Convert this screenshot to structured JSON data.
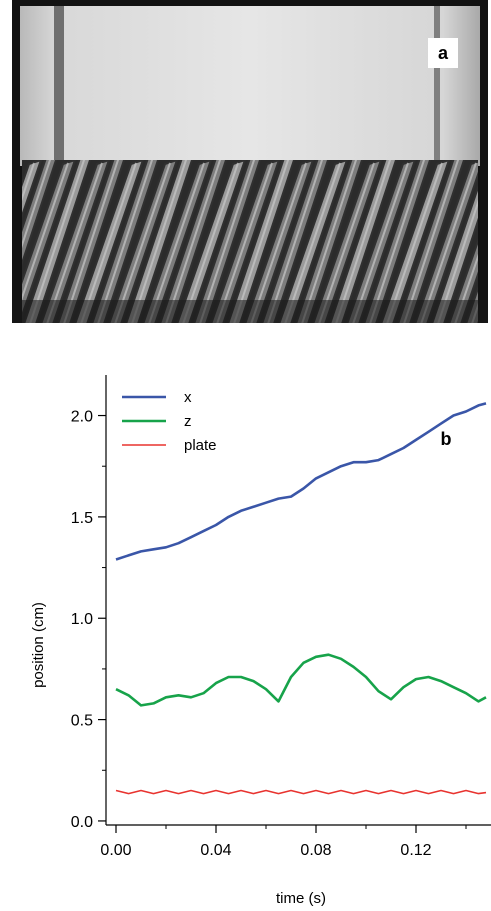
{
  "panel_a": {
    "label": "a"
  },
  "chart_data": {
    "type": "line",
    "panel_label": "b",
    "title": "",
    "xlabel": "time (s)",
    "ylabel": "position (cm)",
    "xlim": [
      -0.004,
      0.15
    ],
    "ylim": [
      -0.02,
      2.2
    ],
    "xticks": [
      0.0,
      0.04,
      0.08,
      0.12
    ],
    "xtick_labels": [
      "0.00",
      "0.04",
      "0.08",
      "0.12"
    ],
    "yticks": [
      0.0,
      0.5,
      1.0,
      1.5,
      2.0
    ],
    "ytick_labels": [
      "0.0",
      "0.5",
      "1.0",
      "1.5",
      "2.0"
    ],
    "legend_position": "top-left",
    "grid": false,
    "x": [
      0.0,
      0.005,
      0.01,
      0.015,
      0.02,
      0.025,
      0.03,
      0.035,
      0.04,
      0.045,
      0.05,
      0.055,
      0.06,
      0.065,
      0.07,
      0.075,
      0.08,
      0.085,
      0.09,
      0.095,
      0.1,
      0.105,
      0.11,
      0.115,
      0.12,
      0.125,
      0.13,
      0.135,
      0.14,
      0.145,
      0.148
    ],
    "series": [
      {
        "name": "x",
        "color": "#3a56a8",
        "values": [
          1.29,
          1.31,
          1.33,
          1.34,
          1.35,
          1.37,
          1.4,
          1.43,
          1.46,
          1.5,
          1.53,
          1.55,
          1.57,
          1.59,
          1.6,
          1.64,
          1.69,
          1.72,
          1.75,
          1.77,
          1.77,
          1.78,
          1.81,
          1.84,
          1.88,
          1.92,
          1.96,
          2.0,
          2.02,
          2.05,
          2.06
        ]
      },
      {
        "name": "z",
        "color": "#17a34a",
        "values": [
          0.65,
          0.62,
          0.57,
          0.58,
          0.61,
          0.62,
          0.61,
          0.63,
          0.68,
          0.71,
          0.71,
          0.69,
          0.65,
          0.59,
          0.71,
          0.78,
          0.81,
          0.82,
          0.8,
          0.76,
          0.71,
          0.64,
          0.6,
          0.66,
          0.7,
          0.71,
          0.69,
          0.66,
          0.63,
          0.59,
          0.61
        ]
      },
      {
        "name": "plate",
        "color": "#e8332f",
        "values": [
          0.15,
          0.135,
          0.15,
          0.135,
          0.15,
          0.135,
          0.15,
          0.135,
          0.15,
          0.135,
          0.15,
          0.135,
          0.15,
          0.135,
          0.15,
          0.135,
          0.15,
          0.135,
          0.15,
          0.135,
          0.15,
          0.135,
          0.15,
          0.135,
          0.15,
          0.135,
          0.15,
          0.135,
          0.15,
          0.135,
          0.14
        ]
      }
    ]
  }
}
